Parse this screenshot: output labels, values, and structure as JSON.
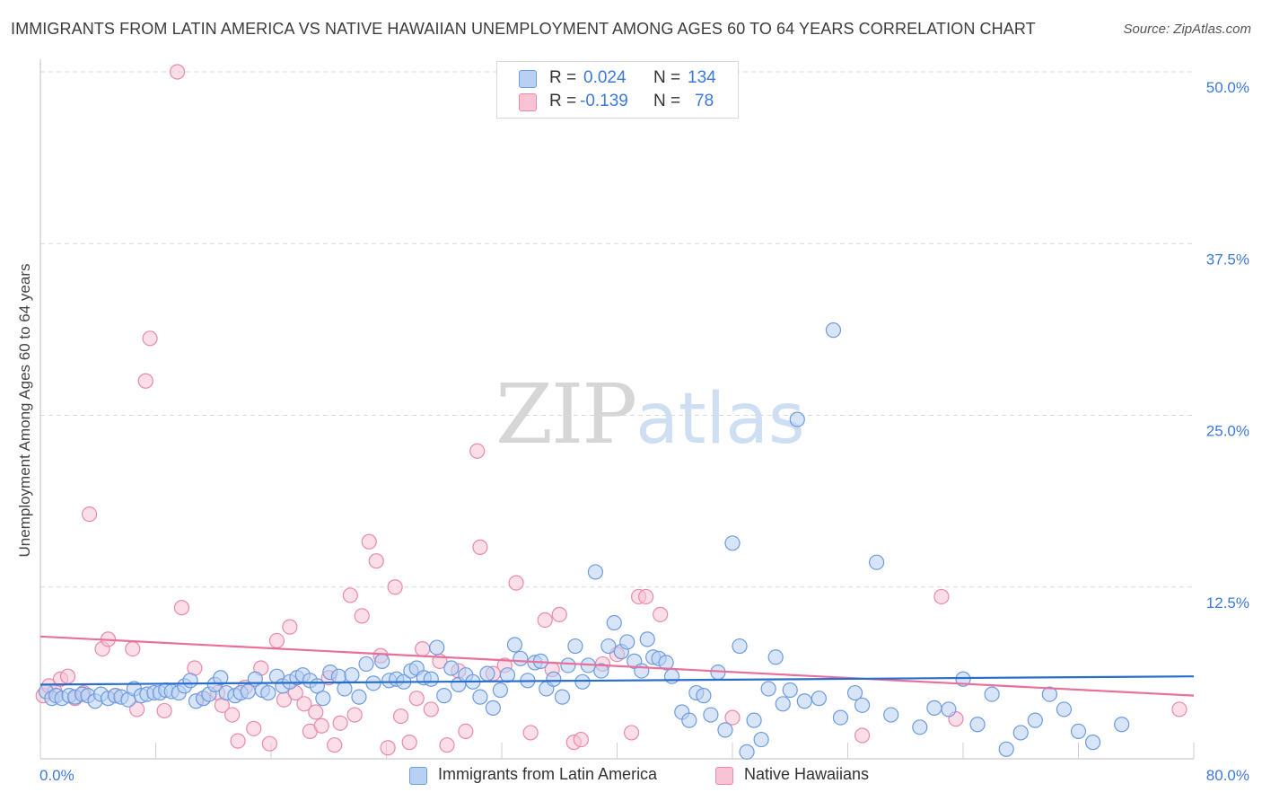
{
  "header": {
    "title": "IMMIGRANTS FROM LATIN AMERICA VS NATIVE HAWAIIAN UNEMPLOYMENT AMONG AGES 60 TO 64 YEARS CORRELATION CHART",
    "source": "Source: ZipAtlas.com"
  },
  "watermark": {
    "zip": "ZIP",
    "atlas": "atlas"
  },
  "stats_legend": {
    "rows": [
      {
        "r_label": "R =",
        "r_value": "0.024",
        "n_label": "N =",
        "n_value": "134",
        "color": "#b8d0f2"
      },
      {
        "r_label": "R =",
        "r_value": "-0.139",
        "n_label": "N =",
        "n_value": "78",
        "color": "#f8c3d4"
      }
    ]
  },
  "colors": {
    "blue_fill": "#b8d0f2",
    "blue_stroke": "#6d9be0",
    "blue_line": "#2a6ecb",
    "pink_fill": "#f8c3d4",
    "pink_stroke": "#e98aa9",
    "pink_line": "#e8709a",
    "tick_label": "#3d79d8",
    "grid": "#d9d9d9"
  },
  "chart_data": {
    "type": "scatter",
    "title": "IMMIGRANTS FROM LATIN AMERICA VS NATIVE HAWAIIAN UNEMPLOYMENT AMONG AGES 60 TO 64 YEARS CORRELATION CHART",
    "xlabel": "",
    "ylabel": "Unemployment Among Ages 60 to 64 years",
    "xlim": [
      0,
      80
    ],
    "ylim": [
      0,
      50
    ],
    "x_tick_labels": [
      "0.0%",
      "80.0%"
    ],
    "y_ticks": [
      12.5,
      25.0,
      37.5,
      50.0
    ],
    "y_tick_labels": [
      "12.5%",
      "25.0%",
      "37.5%",
      "50.0%"
    ],
    "grid": "horizontal dashed",
    "legend_position": "bottom",
    "series": [
      {
        "name": "Immigrants from Latin America",
        "trend": {
          "x": [
            0,
            80
          ],
          "y": [
            5.4,
            6.0
          ]
        },
        "points": [
          [
            0.4,
            4.9
          ],
          [
            0.8,
            4.4
          ],
          [
            1.1,
            4.6
          ],
          [
            1.5,
            4.4
          ],
          [
            2.0,
            4.6
          ],
          [
            2.4,
            4.5
          ],
          [
            2.9,
            4.7
          ],
          [
            3.3,
            4.6
          ],
          [
            3.8,
            4.2
          ],
          [
            4.2,
            4.7
          ],
          [
            4.7,
            4.4
          ],
          [
            5.2,
            4.6
          ],
          [
            5.6,
            4.5
          ],
          [
            6.1,
            4.3
          ],
          [
            6.5,
            5.1
          ],
          [
            7.0,
            4.6
          ],
          [
            7.4,
            4.7
          ],
          [
            7.9,
            4.8
          ],
          [
            8.3,
            4.8
          ],
          [
            8.7,
            5.0
          ],
          [
            9.1,
            4.9
          ],
          [
            9.6,
            4.8
          ],
          [
            10.0,
            5.3
          ],
          [
            10.4,
            5.7
          ],
          [
            10.8,
            4.2
          ],
          [
            11.3,
            4.4
          ],
          [
            11.7,
            4.7
          ],
          [
            12.1,
            5.4
          ],
          [
            12.5,
            5.9
          ],
          [
            12.9,
            4.8
          ],
          [
            13.5,
            4.6
          ],
          [
            13.9,
            4.8
          ],
          [
            14.4,
            4.9
          ],
          [
            14.9,
            5.8
          ],
          [
            15.4,
            5.0
          ],
          [
            15.8,
            4.8
          ],
          [
            16.4,
            6.0
          ],
          [
            16.8,
            5.3
          ],
          [
            17.3,
            5.6
          ],
          [
            17.8,
            5.9
          ],
          [
            18.2,
            6.1
          ],
          [
            18.7,
            5.7
          ],
          [
            19.2,
            5.3
          ],
          [
            19.6,
            4.4
          ],
          [
            20.1,
            6.3
          ],
          [
            20.7,
            6.0
          ],
          [
            21.1,
            5.1
          ],
          [
            21.6,
            6.1
          ],
          [
            22.1,
            4.5
          ],
          [
            22.6,
            6.9
          ],
          [
            23.1,
            5.5
          ],
          [
            23.7,
            7.1
          ],
          [
            24.2,
            5.7
          ],
          [
            24.7,
            5.8
          ],
          [
            25.2,
            5.6
          ],
          [
            25.7,
            6.4
          ],
          [
            26.1,
            6.6
          ],
          [
            26.6,
            5.9
          ],
          [
            27.1,
            5.8
          ],
          [
            27.5,
            8.1
          ],
          [
            28.0,
            4.6
          ],
          [
            28.5,
            6.6
          ],
          [
            29.0,
            5.4
          ],
          [
            29.5,
            6.1
          ],
          [
            30.0,
            5.6
          ],
          [
            30.5,
            4.5
          ],
          [
            31.0,
            6.2
          ],
          [
            31.4,
            3.7
          ],
          [
            31.9,
            5.0
          ],
          [
            32.4,
            6.1
          ],
          [
            32.9,
            8.3
          ],
          [
            33.3,
            7.3
          ],
          [
            33.8,
            5.7
          ],
          [
            34.3,
            7.0
          ],
          [
            34.7,
            7.1
          ],
          [
            35.1,
            5.1
          ],
          [
            35.6,
            5.8
          ],
          [
            36.2,
            4.5
          ],
          [
            36.6,
            6.8
          ],
          [
            37.1,
            8.2
          ],
          [
            37.6,
            5.6
          ],
          [
            38.0,
            6.8
          ],
          [
            38.5,
            13.6
          ],
          [
            38.9,
            6.4
          ],
          [
            39.4,
            8.2
          ],
          [
            39.8,
            9.9
          ],
          [
            40.3,
            7.8
          ],
          [
            40.7,
            8.5
          ],
          [
            41.2,
            7.1
          ],
          [
            41.7,
            6.4
          ],
          [
            42.1,
            8.7
          ],
          [
            42.5,
            7.4
          ],
          [
            42.9,
            7.3
          ],
          [
            43.4,
            7.0
          ],
          [
            43.8,
            6.0
          ],
          [
            44.5,
            3.4
          ],
          [
            45.0,
            2.8
          ],
          [
            45.5,
            4.8
          ],
          [
            46.0,
            4.6
          ],
          [
            46.5,
            3.2
          ],
          [
            47.0,
            6.3
          ],
          [
            47.5,
            2.1
          ],
          [
            48.0,
            15.7
          ],
          [
            48.5,
            8.2
          ],
          [
            49.0,
            0.5
          ],
          [
            49.5,
            2.8
          ],
          [
            50.0,
            1.4
          ],
          [
            50.5,
            5.1
          ],
          [
            51.0,
            7.4
          ],
          [
            51.5,
            4.0
          ],
          [
            52.0,
            5.0
          ],
          [
            52.5,
            24.7
          ],
          [
            53.0,
            4.2
          ],
          [
            54.0,
            4.4
          ],
          [
            55.0,
            31.2
          ],
          [
            55.5,
            3.0
          ],
          [
            56.5,
            4.8
          ],
          [
            57.0,
            3.9
          ],
          [
            58.0,
            14.3
          ],
          [
            59.0,
            3.2
          ],
          [
            61.0,
            2.3
          ],
          [
            62.0,
            3.7
          ],
          [
            63.0,
            3.6
          ],
          [
            64.0,
            5.8
          ],
          [
            65.0,
            2.5
          ],
          [
            66.0,
            4.7
          ],
          [
            67.0,
            0.7
          ],
          [
            68.0,
            1.9
          ],
          [
            69.0,
            2.8
          ],
          [
            70.0,
            4.7
          ],
          [
            71.0,
            3.6
          ],
          [
            72.0,
            2.0
          ],
          [
            73.0,
            1.2
          ],
          [
            75.0,
            2.5
          ]
        ]
      },
      {
        "name": "Native Hawaiians",
        "trend": {
          "x": [
            0,
            80
          ],
          "y": [
            8.9,
            4.6
          ]
        },
        "points": [
          [
            0.2,
            4.6
          ],
          [
            0.6,
            5.3
          ],
          [
            1.0,
            4.9
          ],
          [
            1.4,
            5.8
          ],
          [
            1.9,
            6.0
          ],
          [
            2.4,
            4.4
          ],
          [
            3.0,
            4.8
          ],
          [
            3.4,
            17.8
          ],
          [
            4.3,
            8.0
          ],
          [
            4.7,
            8.7
          ],
          [
            5.2,
            4.6
          ],
          [
            6.4,
            8.0
          ],
          [
            6.7,
            3.6
          ],
          [
            7.6,
            30.6
          ],
          [
            7.3,
            27.5
          ],
          [
            8.6,
            3.5
          ],
          [
            9.5,
            50.0
          ],
          [
            9.8,
            11.0
          ],
          [
            10.7,
            6.6
          ],
          [
            11.3,
            4.4
          ],
          [
            12.3,
            4.8
          ],
          [
            12.6,
            3.9
          ],
          [
            13.3,
            3.2
          ],
          [
            13.7,
            1.3
          ],
          [
            14.2,
            5.2
          ],
          [
            14.8,
            2.2
          ],
          [
            15.3,
            6.6
          ],
          [
            15.9,
            1.1
          ],
          [
            16.4,
            8.6
          ],
          [
            16.9,
            4.3
          ],
          [
            17.3,
            9.6
          ],
          [
            17.7,
            4.8
          ],
          [
            18.3,
            4.0
          ],
          [
            18.7,
            2.0
          ],
          [
            19.1,
            3.4
          ],
          [
            19.5,
            2.4
          ],
          [
            20.0,
            5.9
          ],
          [
            20.4,
            1.0
          ],
          [
            20.8,
            2.6
          ],
          [
            21.5,
            11.9
          ],
          [
            21.8,
            3.2
          ],
          [
            22.3,
            10.4
          ],
          [
            22.8,
            15.8
          ],
          [
            23.3,
            14.4
          ],
          [
            23.6,
            7.5
          ],
          [
            24.1,
            0.8
          ],
          [
            24.6,
            12.5
          ],
          [
            25.0,
            3.1
          ],
          [
            25.6,
            1.2
          ],
          [
            26.1,
            4.4
          ],
          [
            26.5,
            8.0
          ],
          [
            27.1,
            3.6
          ],
          [
            27.7,
            7.1
          ],
          [
            28.2,
            1.0
          ],
          [
            29.0,
            6.4
          ],
          [
            29.5,
            2.0
          ],
          [
            30.3,
            22.4
          ],
          [
            30.5,
            15.4
          ],
          [
            31.4,
            6.2
          ],
          [
            32.2,
            6.8
          ],
          [
            33.0,
            12.8
          ],
          [
            34.0,
            1.9
          ],
          [
            35.0,
            10.1
          ],
          [
            35.5,
            6.5
          ],
          [
            36.0,
            10.5
          ],
          [
            37.0,
            1.2
          ],
          [
            37.5,
            1.4
          ],
          [
            39.0,
            6.9
          ],
          [
            40.0,
            7.6
          ],
          [
            41.0,
            1.9
          ],
          [
            41.5,
            11.8
          ],
          [
            42.0,
            11.8
          ],
          [
            43.0,
            10.5
          ],
          [
            48.0,
            3.0
          ],
          [
            57.0,
            1.7
          ],
          [
            62.5,
            11.8
          ],
          [
            63.5,
            2.9
          ],
          [
            79.0,
            3.6
          ]
        ]
      }
    ]
  },
  "legend": {
    "items": [
      {
        "label": "Immigrants from Latin America",
        "color": "#b8d0f2"
      },
      {
        "label": "Native Hawaiians",
        "color": "#f8c3d4"
      }
    ]
  }
}
